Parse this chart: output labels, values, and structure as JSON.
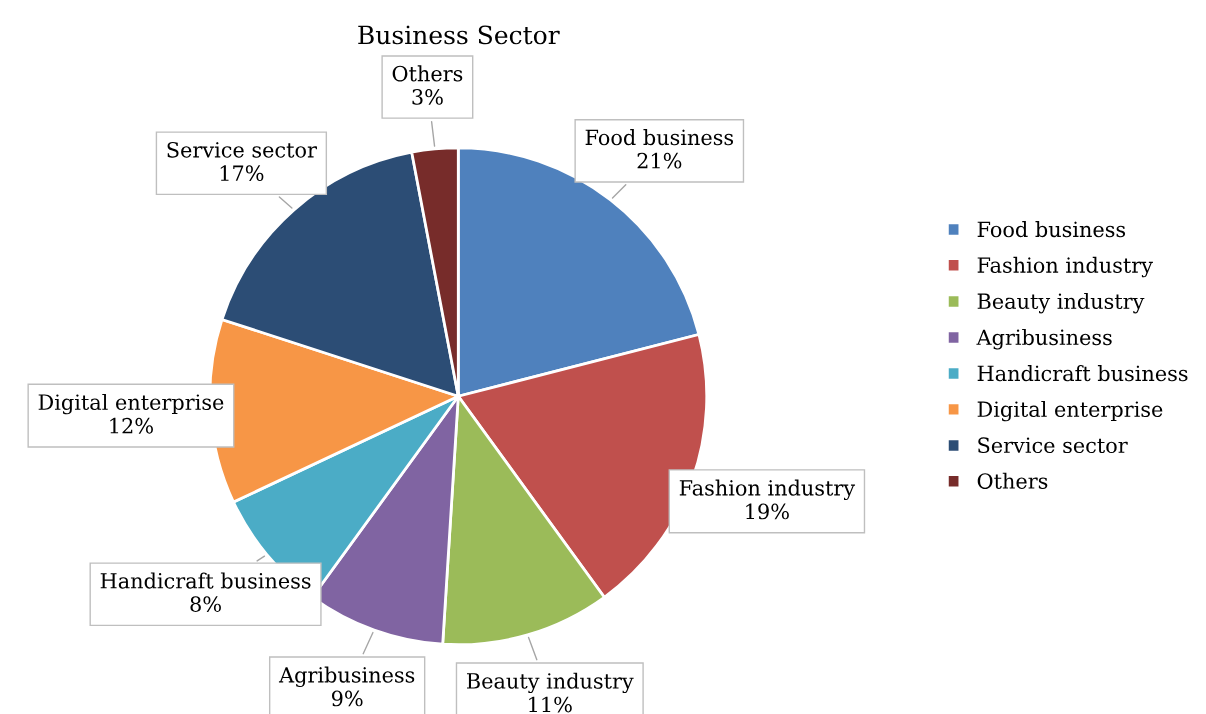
{
  "chart_data": {
    "type": "pie",
    "title": "Business Sector",
    "categories": [
      "Food business",
      "Fashion industry",
      "Beauty industry",
      "Agribusiness",
      "Handicraft business",
      "Digital enterprise",
      "Service sector",
      "Others"
    ],
    "values": [
      21,
      19,
      11,
      9,
      8,
      12,
      17,
      3
    ],
    "value_labels": [
      "21%",
      "19%",
      "11%",
      "9%",
      "8%",
      "12%",
      "17%",
      "3%"
    ],
    "colors": [
      "#4f81bd",
      "#c0504d",
      "#9bbb59",
      "#8064a2",
      "#4bacc6",
      "#f79646",
      "#2c4d75",
      "#772c2a"
    ],
    "legend": "right"
  }
}
